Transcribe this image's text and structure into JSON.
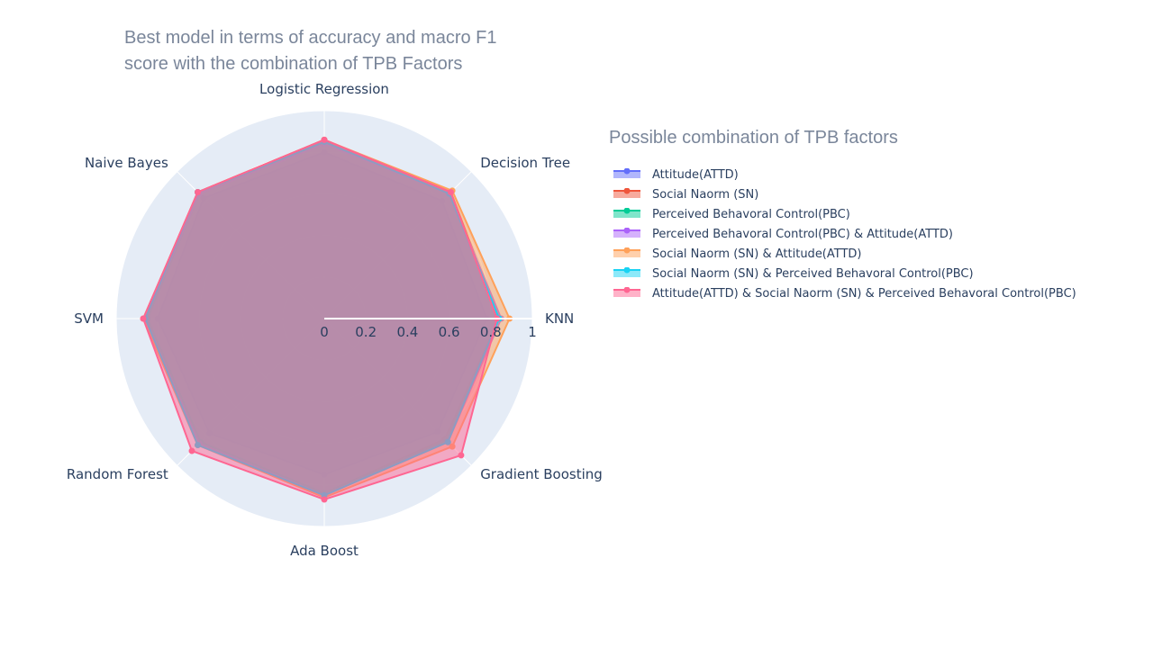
{
  "chart_data": {
    "type": "radar",
    "title_lines": [
      "Best model in terms of accuracy and macro F1",
      "score with the combination of TPB Factors"
    ],
    "axes": [
      "Logistic Regression",
      "Decision Tree",
      "KNN",
      "Gradient Boosting",
      "Ada Boost",
      "Random Forest",
      "SVM",
      "Naive Bayes"
    ],
    "radial_range": [
      0,
      1
    ],
    "radial_ticks": [
      "0",
      "0.2",
      "0.4",
      "0.6",
      "0.8",
      "1"
    ],
    "legend_title": "Possible combination of TPB factors",
    "legend_placement": "right",
    "series": [
      {
        "name": "Attitude(ATTD)",
        "color": "#636efa",
        "values": [
          0.8,
          0.8,
          0.78,
          0.77,
          0.75,
          0.78,
          0.8,
          0.82
        ]
      },
      {
        "name": "Social Naorm (SN)",
        "color": "#ef553b",
        "values": [
          0.86,
          0.86,
          0.84,
          0.82,
          0.84,
          0.84,
          0.86,
          0.86
        ]
      },
      {
        "name": "Perceived Behavoral Control(PBC)",
        "color": "#00cc96",
        "values": [
          0.85,
          0.85,
          0.84,
          0.83,
          0.84,
          0.84,
          0.85,
          0.85
        ]
      },
      {
        "name": "Perceived Behavoral Control(PBC) & Attitude(ATTD)",
        "color": "#ab63fa",
        "values": [
          0.84,
          0.85,
          0.85,
          0.84,
          0.85,
          0.85,
          0.86,
          0.85
        ]
      },
      {
        "name": "Social Naorm (SN) & Attitude(ATTD)",
        "color": "#ffa15a",
        "values": [
          0.86,
          0.87,
          0.89,
          0.87,
          0.86,
          0.86,
          0.87,
          0.86
        ]
      },
      {
        "name": "Social Naorm (SN) & Perceived Behavoral Control(PBC)",
        "color": "#19d3f3",
        "values": [
          0.85,
          0.85,
          0.84,
          0.84,
          0.85,
          0.86,
          0.86,
          0.86
        ]
      },
      {
        "name": "Attitude(ATTD) & Social Naorm (SN) & Perceived Behavoral Control(PBC)",
        "color": "#ff6692",
        "values": [
          0.86,
          0.86,
          0.83,
          0.93,
          0.87,
          0.9,
          0.87,
          0.86
        ]
      }
    ]
  }
}
